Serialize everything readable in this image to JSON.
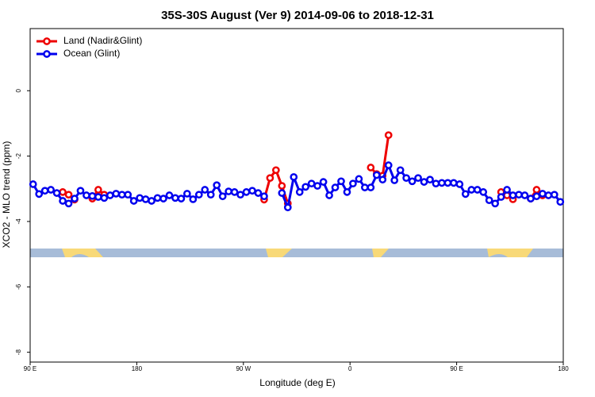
{
  "chart_data": {
    "type": "line",
    "title": "35S-30S August (Ver 9)   2014-09-06 to 2018-12-31",
    "xlabel": "Longitude (deg E)",
    "ylabel": "XCO2 - MLO trend (ppm)",
    "x": [
      92.5,
      97.5,
      102.5,
      107.5,
      112.5,
      117.5,
      122.5,
      127.5,
      132.5,
      137.5,
      142.5,
      147.5,
      152.5,
      157.5,
      162.5,
      167.5,
      172.5,
      177.5,
      182.5,
      187.5,
      192.5,
      197.5,
      202.5,
      207.5,
      212.5,
      217.5,
      222.5,
      227.5,
      232.5,
      237.5,
      242.5,
      247.5,
      252.5,
      257.5,
      262.5,
      267.5,
      272.5,
      277.5,
      282.5,
      287.5,
      292.5,
      297.5,
      302.5,
      307.5,
      312.5,
      317.5,
      322.5,
      327.5,
      332.5,
      337.5,
      342.5,
      347.5,
      352.5,
      357.5,
      362.5,
      367.5,
      372.5,
      377.5,
      382.5,
      387.5,
      392.5,
      397.5,
      402.5,
      407.5,
      412.5,
      417.5,
      422.5,
      427.5,
      432.5,
      437.5,
      442.5,
      447.5,
      452.5,
      457.5,
      462.5,
      467.5,
      472.5,
      477.5,
      482.5,
      487.5,
      492.5,
      497.5,
      502.5,
      507.5,
      512.5,
      517.5,
      522.5,
      527.5,
      532.5,
      537.5
    ],
    "series": [
      {
        "name": "Land (Nadir&Glint)",
        "color": "#ee0000",
        "values": [
          null,
          null,
          null,
          null,
          null,
          -3.1,
          -3.18,
          -3.33,
          null,
          null,
          -3.3,
          -3.03,
          -3.18,
          null,
          null,
          null,
          null,
          null,
          null,
          null,
          null,
          null,
          null,
          null,
          null,
          null,
          null,
          null,
          null,
          null,
          null,
          null,
          null,
          null,
          null,
          null,
          null,
          null,
          null,
          -3.33,
          -2.67,
          -2.43,
          -2.91,
          -3.45,
          null,
          null,
          null,
          null,
          null,
          null,
          null,
          null,
          null,
          null,
          null,
          null,
          null,
          -2.35,
          -2.55,
          -2.6,
          -1.36,
          null,
          null,
          null,
          null,
          null,
          null,
          null,
          null,
          null,
          null,
          null,
          null,
          null,
          null,
          null,
          null,
          null,
          null,
          -3.1,
          -3.2,
          -3.32,
          null,
          null,
          -3.3,
          -3.03,
          -3.2,
          null,
          null,
          null
        ]
      },
      {
        "name": "Ocean (Glint)",
        "color": "#0000ee",
        "values": [
          -2.86,
          -3.16,
          -3.06,
          -3.03,
          -3.13,
          -3.37,
          -3.45,
          -3.3,
          -3.06,
          -3.2,
          -3.22,
          -3.25,
          -3.28,
          -3.2,
          -3.15,
          -3.18,
          -3.18,
          -3.37,
          -3.28,
          -3.32,
          -3.37,
          -3.28,
          -3.3,
          -3.2,
          -3.28,
          -3.3,
          -3.15,
          -3.32,
          -3.18,
          -3.03,
          -3.18,
          -2.89,
          -3.23,
          -3.08,
          -3.1,
          -3.18,
          -3.1,
          -3.06,
          -3.13,
          -3.23,
          null,
          null,
          -3.13,
          -3.57,
          -2.64,
          -3.1,
          -2.94,
          -2.84,
          -2.91,
          -2.79,
          -3.2,
          -2.96,
          -2.77,
          -3.1,
          -2.84,
          -2.7,
          -2.96,
          -2.96,
          -2.58,
          -2.72,
          -2.28,
          -2.74,
          -2.43,
          -2.67,
          -2.77,
          -2.67,
          -2.79,
          -2.72,
          -2.84,
          -2.82,
          -2.82,
          -2.82,
          -2.86,
          -3.16,
          -3.03,
          -3.03,
          -3.1,
          -3.35,
          -3.45,
          -3.25,
          -3.03,
          -3.2,
          -3.18,
          -3.2,
          -3.3,
          -3.23,
          -3.15,
          -3.2,
          -3.18,
          -3.4
        ]
      }
    ],
    "xlim": [
      90,
      540
    ],
    "xticks": [
      {
        "value": 90,
        "label": "90 E"
      },
      180,
      {
        "value": 270,
        "label": "90 W"
      },
      {
        "value": 360,
        "label": "0"
      },
      {
        "value": 450,
        "label": "90 E"
      },
      {
        "value": 540,
        "label": "180"
      }
    ],
    "ylim": [
      -8.3,
      1.9
    ],
    "yticks": [
      0,
      -2,
      -4,
      -6,
      -8
    ],
    "legend": "top-left"
  }
}
